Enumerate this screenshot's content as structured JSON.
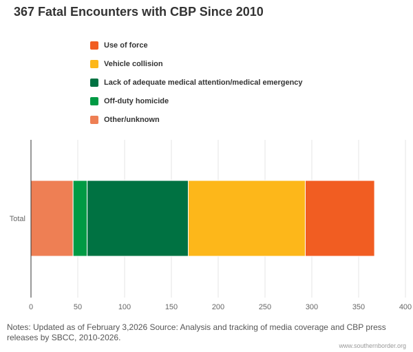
{
  "title": "367 Fatal Encounters with CBP Since 2010",
  "notes": "Notes: Updated as of February 3,2026 Source: Analysis and tracking of media coverage and CBP press releases by SBCC, 2010-2026.",
  "credit": "www.southernborder.org",
  "legend": [
    {
      "label": "Use of force",
      "color": "#F15D22"
    },
    {
      "label": "Vehicle collision",
      "color": "#FDB71A"
    },
    {
      "label": "Lack of adequate medical attention/medical emergency",
      "color": "#007242"
    },
    {
      "label": "Off-duty homicide",
      "color": "#009A44"
    },
    {
      "label": "Other/unknown",
      "color": "#EE7F54"
    }
  ],
  "chart_data": {
    "type": "bar",
    "orientation": "horizontal",
    "stacked": true,
    "title": "367 Fatal Encounters with CBP Since 2010",
    "categories": [
      "Total"
    ],
    "series": [
      {
        "name": "Other/unknown",
        "values": [
          45
        ],
        "color": "#EE7F54"
      },
      {
        "name": "Off-duty homicide",
        "values": [
          15
        ],
        "color": "#009A44"
      },
      {
        "name": "Lack of adequate medical attention/medical emergency",
        "values": [
          108
        ],
        "color": "#007242"
      },
      {
        "name": "Vehicle collision",
        "values": [
          125
        ],
        "color": "#FDB71A"
      },
      {
        "name": "Use of force",
        "values": [
          74
        ],
        "color": "#F15D22"
      }
    ],
    "xlabel": "",
    "ylabel": "",
    "xlim": [
      0,
      400
    ],
    "xticks": [
      0,
      50,
      100,
      150,
      200,
      250,
      300,
      350,
      400
    ],
    "grid": true,
    "legend_position": "top"
  }
}
